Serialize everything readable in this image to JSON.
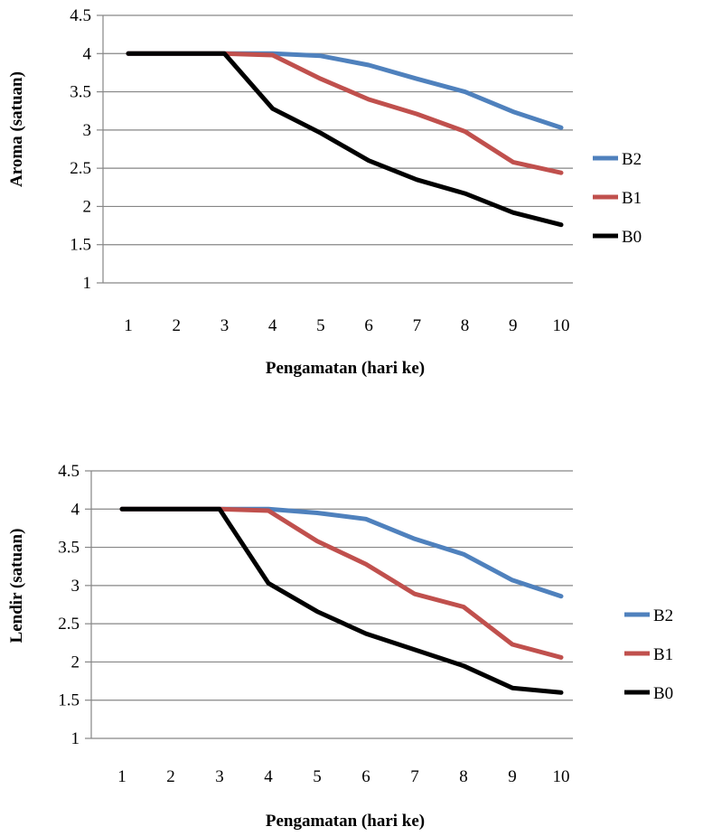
{
  "chart_data": [
    {
      "type": "line",
      "title": "",
      "xlabel": "Pengamatan (hari ke)",
      "ylabel": "Aroma (satuan)",
      "categories": [
        "1",
        "2",
        "3",
        "4",
        "5",
        "6",
        "7",
        "8",
        "9",
        "10"
      ],
      "yticks": [
        "1",
        "1.5",
        "2",
        "2.5",
        "3",
        "3.5",
        "4",
        "4.5"
      ],
      "ylim": [
        1,
        4.5
      ],
      "grid": true,
      "legend_position": "right",
      "series": [
        {
          "name": "B2",
          "color": "#4F81BD",
          "values": [
            4,
            4,
            4,
            4,
            3.97,
            3.85,
            3.67,
            3.5,
            3.24,
            3.03
          ]
        },
        {
          "name": "B1",
          "color": "#C0504D",
          "values": [
            4,
            4,
            4,
            3.98,
            3.67,
            3.4,
            3.21,
            2.98,
            2.58,
            2.44
          ]
        },
        {
          "name": "B0",
          "color": "#000000",
          "values": [
            4,
            4,
            4,
            3.28,
            2.96,
            2.6,
            2.35,
            2.17,
            1.92,
            1.76
          ]
        }
      ]
    },
    {
      "type": "line",
      "title": "",
      "xlabel": "Pengamatan (hari ke)",
      "ylabel": "Lendir (satuan)",
      "categories": [
        "1",
        "2",
        "3",
        "4",
        "5",
        "6",
        "7",
        "8",
        "9",
        "10"
      ],
      "yticks": [
        "1",
        "1.5",
        "2",
        "2.5",
        "3",
        "3.5",
        "4",
        "4.5"
      ],
      "ylim": [
        1,
        4.5
      ],
      "grid": true,
      "legend_position": "right",
      "series": [
        {
          "name": "B2",
          "color": "#4F81BD",
          "values": [
            4,
            4,
            4,
            4,
            3.95,
            3.87,
            3.61,
            3.41,
            3.07,
            2.86
          ]
        },
        {
          "name": "B1",
          "color": "#C0504D",
          "values": [
            4,
            4,
            4,
            3.98,
            3.58,
            3.28,
            2.89,
            2.72,
            2.23,
            2.06
          ]
        },
        {
          "name": "B0",
          "color": "#000000",
          "values": [
            4,
            4,
            4,
            3.03,
            2.66,
            2.37,
            2.16,
            1.95,
            1.66,
            1.6
          ]
        }
      ]
    }
  ]
}
